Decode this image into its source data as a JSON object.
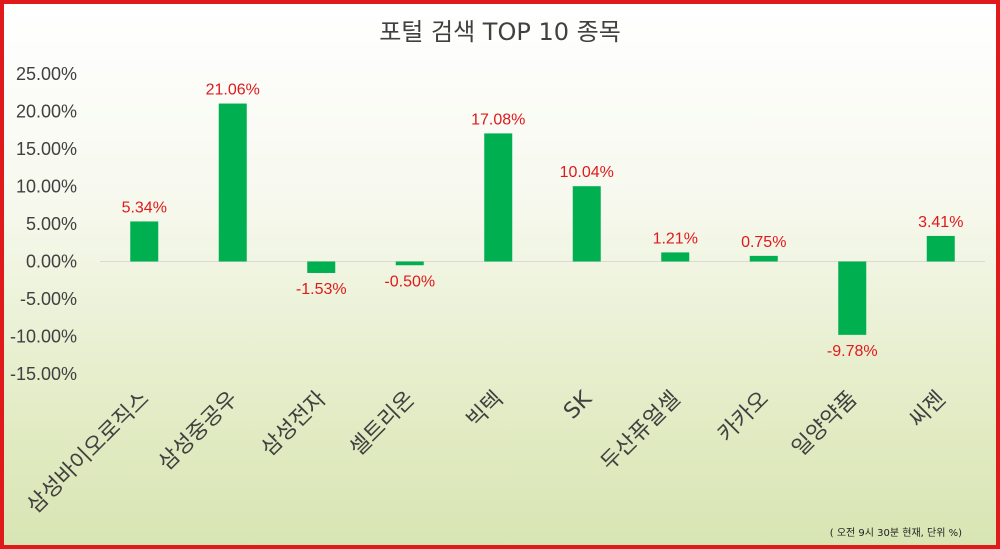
{
  "chart_data": {
    "type": "bar",
    "title": "포털 검색 TOP 10 종목",
    "categories": [
      "삼성바이오로직스",
      "삼성중공우",
      "삼성전자",
      "셀트리온",
      "빅텍",
      "SK",
      "두산퓨얼셀",
      "카카오",
      "일양약품",
      "씨젠"
    ],
    "values": [
      5.34,
      21.06,
      -1.53,
      -0.5,
      17.08,
      10.04,
      1.21,
      0.75,
      -9.78,
      3.41
    ],
    "data_labels": [
      "5.34%",
      "21.06%",
      "-1.53%",
      "-0.50%",
      "17.08%",
      "10.04%",
      "1.21%",
      "0.75%",
      "-9.78%",
      "3.41%"
    ],
    "y_ticks": [
      "25.00%",
      "20.00%",
      "15.00%",
      "10.00%",
      "5.00%",
      "0.00%",
      "-5.00%",
      "-10.00%",
      "-15.00%"
    ],
    "ylim": [
      -15,
      25
    ],
    "grid": false,
    "xlabel": "",
    "ylabel": "",
    "colors": {
      "bar": "#00b050",
      "data_label": "#e0191b",
      "border": "#e0191b",
      "text": "#404040"
    }
  },
  "footnote": "( 오전 9시  30분 현재, 단위 %)"
}
